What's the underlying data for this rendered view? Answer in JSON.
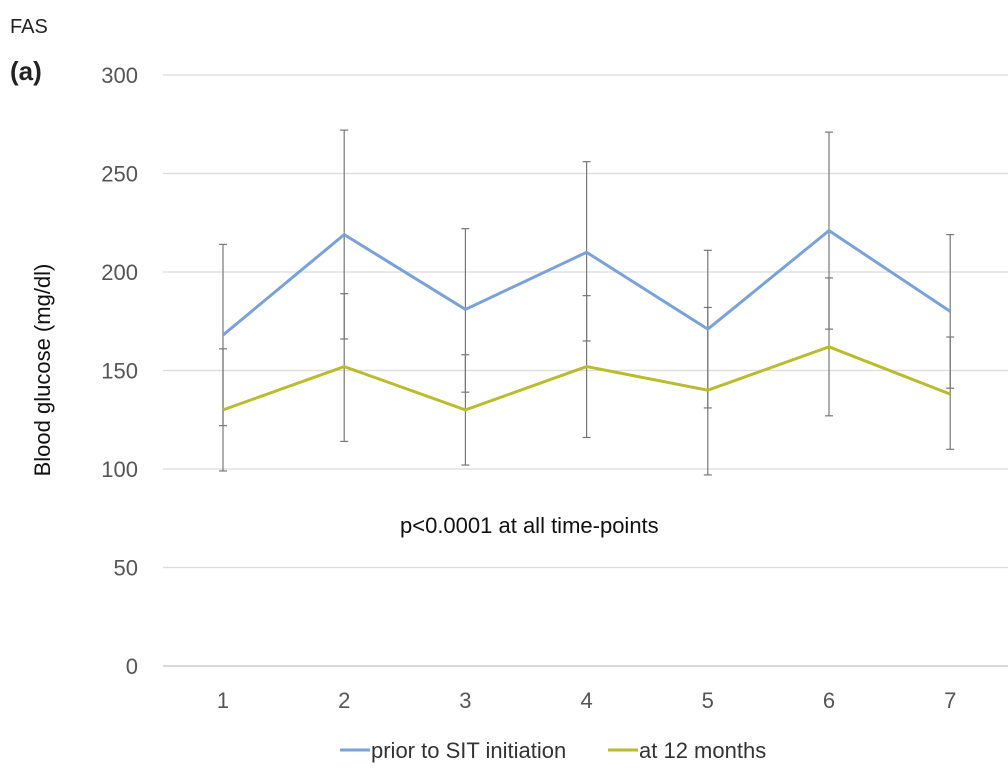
{
  "figure_label": "FAS",
  "panel_label": "(a)",
  "chart_data": {
    "type": "line",
    "x": [
      1,
      2,
      3,
      4,
      5,
      6,
      7
    ],
    "ylabel": "Blood glucose (mg/dl)",
    "xlabel": "",
    "ylim": [
      0,
      300
    ],
    "yticks": [
      0,
      50,
      100,
      150,
      200,
      250,
      300
    ],
    "grid": "horizontal",
    "legend": "bottom",
    "annotation": "p<0.0001 at all time-points",
    "series": [
      {
        "name": "prior to SIT initiation",
        "color": "#7aa2d6",
        "values": [
          168,
          219,
          181,
          210,
          171,
          221,
          180
        ],
        "error_low": [
          122,
          166,
          139,
          165,
          131,
          171,
          141
        ],
        "error_high": [
          214,
          272,
          222,
          256,
          211,
          271,
          219
        ]
      },
      {
        "name": "at 12 months",
        "color": "#b8bc2e",
        "values": [
          130,
          152,
          130,
          152,
          140,
          162,
          138
        ],
        "error_low": [
          99,
          114,
          102,
          116,
          97,
          127,
          110
        ],
        "error_high": [
          161,
          189,
          158,
          188,
          182,
          197,
          167
        ]
      }
    ]
  }
}
